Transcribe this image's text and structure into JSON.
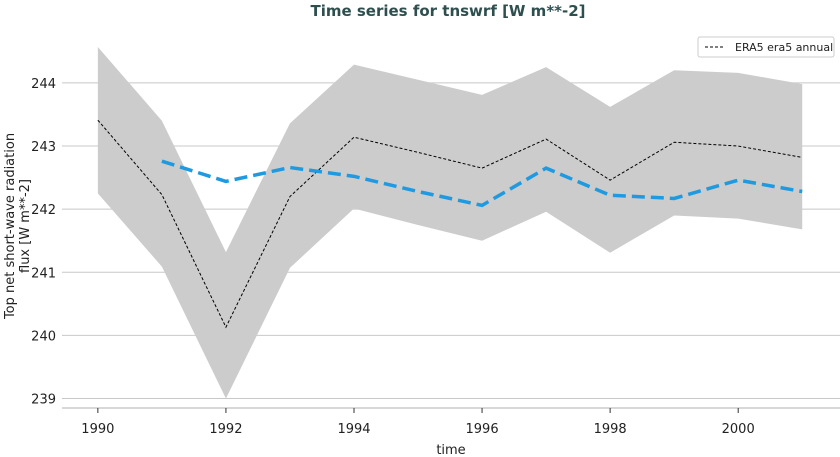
{
  "chart_data": {
    "type": "line",
    "title": "Time series for tnswrf [W m**-2]",
    "xlabel": "time",
    "ylabel": "Top net short-wave radiation flux [W m**-2]",
    "ylabel_lines": [
      "Top net short-wave radiation",
      "flux [W m**-2]"
    ],
    "xlim": [
      1989.44,
      2001.59
    ],
    "ylim": [
      238.85,
      244.68
    ],
    "xticks": [
      1990,
      1992,
      1994,
      1996,
      1998,
      2000
    ],
    "yticks": [
      239,
      240,
      241,
      242,
      243,
      244
    ],
    "grid": "horizontal",
    "legend_placement": "top-right",
    "x": [
      1990,
      1991,
      1992,
      1993,
      1994,
      1995,
      1996,
      1997,
      1998,
      1999,
      2000,
      2001
    ],
    "series": [
      {
        "name": "ERA5 era5 annual",
        "color": "#000000",
        "style": "dashed-thin",
        "values": [
          243.41,
          242.23,
          240.13,
          242.2,
          243.14,
          242.9,
          242.65,
          243.11,
          242.46,
          243.06,
          243.0,
          242.82
        ]
      },
      {
        "color": "#1f9ae0",
        "style": "dashed-thick",
        "values": [
          null,
          242.76,
          242.44,
          242.66,
          242.52,
          242.28,
          242.06,
          242.65,
          242.22,
          242.17,
          242.46,
          242.28
        ]
      }
    ],
    "band": {
      "color": "#cccccc",
      "upper": [
        244.57,
        243.4,
        241.32,
        243.36,
        244.29,
        244.05,
        243.81,
        244.25,
        243.62,
        244.2,
        244.16,
        243.98
      ],
      "lower": [
        242.25,
        241.09,
        239.0,
        241.07,
        242.01,
        241.75,
        241.5,
        241.96,
        241.31,
        241.9,
        241.85,
        241.68
      ]
    }
  },
  "colors": {
    "title": "#2f4f4f",
    "grid": "#c8c8c8"
  }
}
